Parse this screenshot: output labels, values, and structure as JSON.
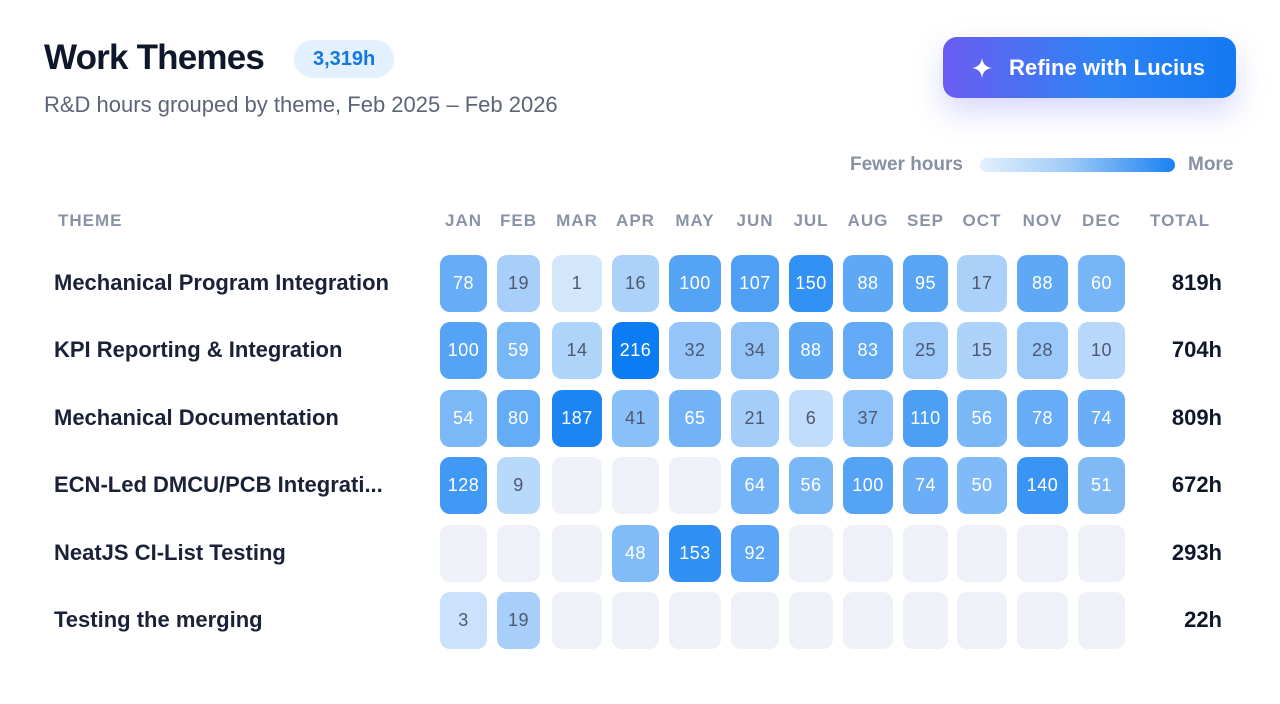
{
  "header": {
    "title": "Work Themes",
    "total_badge": "3,319h",
    "subtitle": "R&D hours grouped by theme, Feb 2025 – Feb 2026",
    "refine_button": "Refine with Lucius",
    "refine_icon": "sparkle-icon"
  },
  "legend": {
    "fewer": "Fewer hours",
    "more": "More"
  },
  "table": {
    "theme_header": "THEME",
    "total_header": "TOTAL",
    "months": [
      "JAN",
      "FEB",
      "MAR",
      "APR",
      "MAY",
      "JUN",
      "JUL",
      "AUG",
      "SEP",
      "OCT",
      "NOV",
      "DEC"
    ],
    "max_value": 216,
    "rows": [
      {
        "theme": "Mechanical Program Integration",
        "values": [
          78,
          19,
          1,
          16,
          100,
          107,
          150,
          88,
          95,
          17,
          88,
          60
        ],
        "total": "819h"
      },
      {
        "theme": "KPI Reporting & Integration",
        "values": [
          100,
          59,
          14,
          216,
          32,
          34,
          88,
          83,
          25,
          15,
          28,
          10
        ],
        "total": "704h"
      },
      {
        "theme": "Mechanical Documentation",
        "values": [
          54,
          80,
          187,
          41,
          65,
          21,
          6,
          37,
          110,
          56,
          78,
          74
        ],
        "total": "809h"
      },
      {
        "theme": "ECN-Led DMCU/PCB Integrati...",
        "values": [
          128,
          9,
          null,
          null,
          null,
          64,
          56,
          100,
          74,
          50,
          140,
          51
        ],
        "total": "672h"
      },
      {
        "theme": "NeatJS CI-List Testing",
        "values": [
          null,
          null,
          null,
          48,
          153,
          92,
          null,
          null,
          null,
          null,
          null,
          null
        ],
        "total": "293h"
      },
      {
        "theme": "Testing the merging",
        "values": [
          3,
          19,
          null,
          null,
          null,
          null,
          null,
          null,
          null,
          null,
          null,
          null
        ],
        "total": "22h"
      }
    ]
  },
  "colors": {
    "empty_cell": "#eef1f8",
    "low": "#dcecfc",
    "high": "#0f7df2",
    "accent": "#1577e0"
  }
}
